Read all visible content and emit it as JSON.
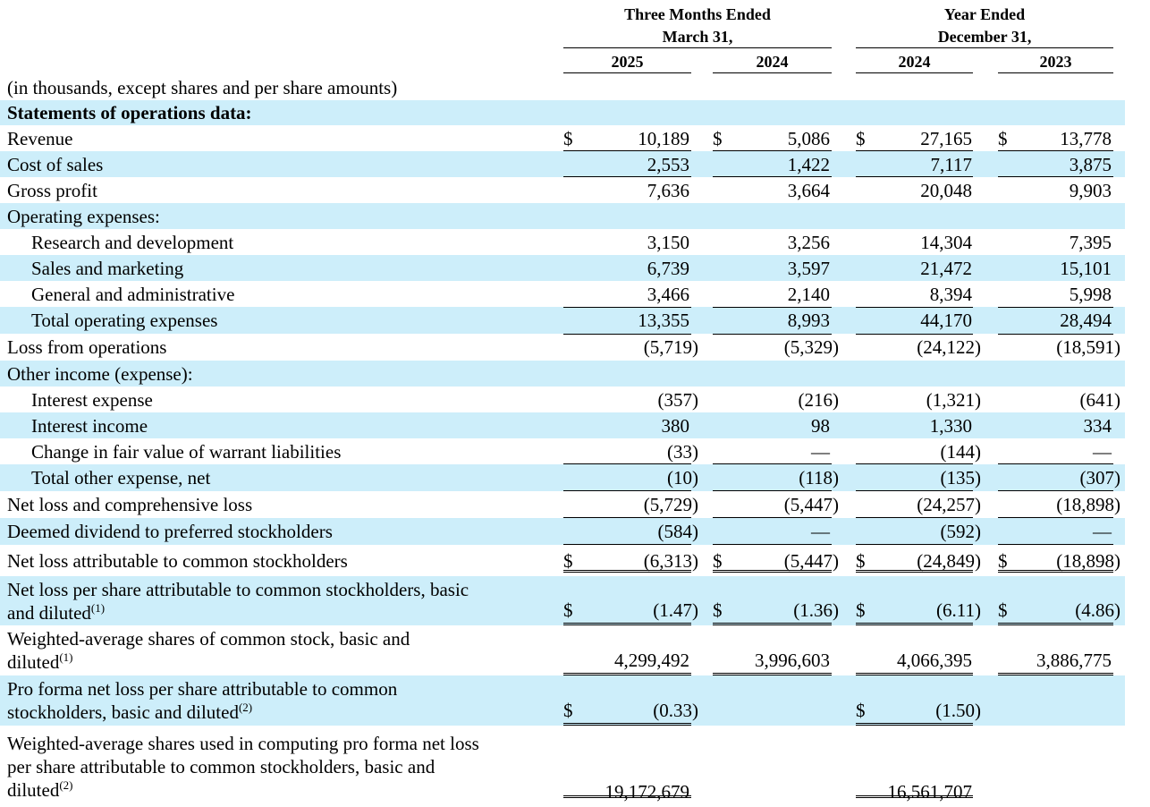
{
  "header": {
    "group1_line1": "Three Months Ended",
    "group1_line2": "March 31,",
    "group2_line1": "Year Ended",
    "group2_line2": "December 31,",
    "years": [
      "2025",
      "2024",
      "2024",
      "2023"
    ]
  },
  "rows": [
    {
      "label": "(in thousands, except shares and per share amounts)",
      "cells": [
        "",
        "",
        "",
        ""
      ]
    },
    {
      "label": "Statements of operations data:",
      "cells": [
        "",
        "",
        "",
        ""
      ]
    },
    {
      "label": "Revenue",
      "cells": [
        "10,189",
        "5,086",
        "27,165",
        "13,778"
      ]
    },
    {
      "label": "Cost of sales",
      "cells": [
        "2,553",
        "1,422",
        "7,117",
        "3,875"
      ]
    },
    {
      "label": "Gross profit",
      "cells": [
        "7,636",
        "3,664",
        "20,048",
        "9,903"
      ]
    },
    {
      "label": "Operating expenses:",
      "cells": [
        "",
        "",
        "",
        ""
      ]
    },
    {
      "label": "Research and development",
      "cells": [
        "3,150",
        "3,256",
        "14,304",
        "7,395"
      ]
    },
    {
      "label": "Sales and marketing",
      "cells": [
        "6,739",
        "3,597",
        "21,472",
        "15,101"
      ]
    },
    {
      "label": "General and administrative",
      "cells": [
        "3,466",
        "2,140",
        "8,394",
        "5,998"
      ]
    },
    {
      "label": "Total operating expenses",
      "cells": [
        "13,355",
        "8,993",
        "44,170",
        "28,494"
      ]
    },
    {
      "label": "Loss from operations",
      "cells": [
        "(5,719)",
        "(5,329)",
        "(24,122)",
        "(18,591)"
      ]
    },
    {
      "label": "Other income (expense):",
      "cells": [
        "",
        "",
        "",
        ""
      ]
    },
    {
      "label": "Interest expense",
      "cells": [
        "(357)",
        "(216)",
        "(1,321)",
        "(641)"
      ]
    },
    {
      "label": "Interest income",
      "cells": [
        "380",
        "98",
        "1,330",
        "334"
      ]
    },
    {
      "label": "Change in fair value of warrant liabilities",
      "cells": [
        "(33)",
        "—",
        "(144)",
        "—"
      ]
    },
    {
      "label": "Total other expense, net",
      "cells": [
        "(10)",
        "(118)",
        "(135)",
        "(307)"
      ]
    },
    {
      "label": "Net loss and comprehensive loss",
      "cells": [
        "(5,729)",
        "(5,447)",
        "(24,257)",
        "(18,898)"
      ]
    },
    {
      "label": "Deemed dividend to preferred stockholders",
      "cells": [
        "(584)",
        "—",
        "(592)",
        "—"
      ]
    },
    {
      "label": "Net loss attributable to common stockholders",
      "cells": [
        "(6,313)",
        "(5,447)",
        "(24,849)",
        "(18,898)"
      ]
    },
    {
      "label_lines": [
        "Net loss per share attributable to common stockholders, basic",
        "and diluted"
      ],
      "sup": "(1)",
      "cells": [
        "(1.47)",
        "(1.36)",
        "(6.11)",
        "(4.86)"
      ]
    },
    {
      "label_lines": [
        "Weighted-average shares of common stock, basic and",
        "diluted"
      ],
      "sup": "(1)",
      "cells": [
        "4,299,492",
        "3,996,603",
        "4,066,395",
        "3,886,775"
      ]
    },
    {
      "label_lines": [
        "Pro forma net loss per share attributable to common",
        "stockholders, basic and diluted"
      ],
      "sup": "(2)",
      "cells": [
        "(0.33)",
        "",
        "(1.50)",
        ""
      ]
    },
    {
      "label_lines": [
        "Weighted-average shares used in computing pro forma net loss",
        "per share attributable to common stockholders, basic and",
        "diluted"
      ],
      "sup": "(2)",
      "cells": [
        "19,172,679",
        "",
        "16,561,707",
        ""
      ]
    }
  ],
  "currency_symbol": "$"
}
